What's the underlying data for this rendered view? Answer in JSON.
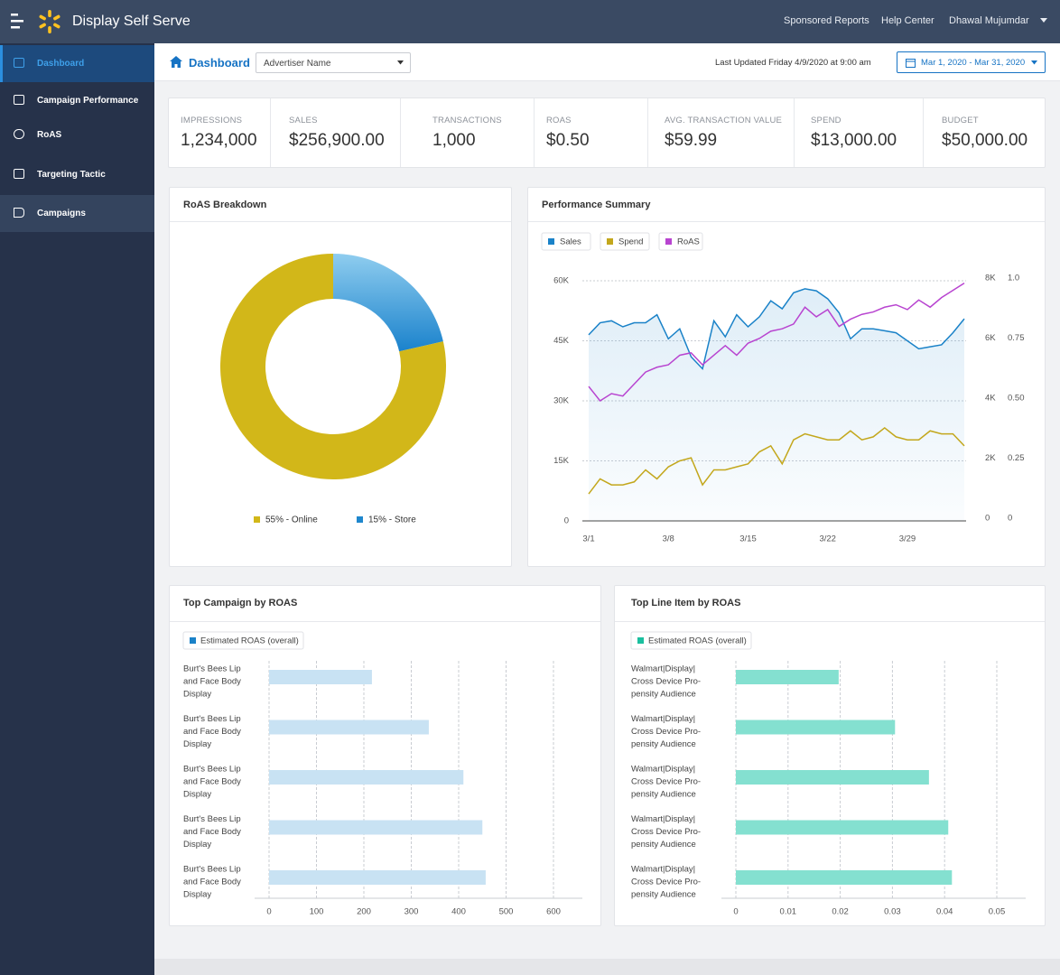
{
  "header": {
    "app_name": "Display Self Serve",
    "links": [
      "Sponsored Reports",
      "Help Center",
      "Dhawal Mujumdar"
    ]
  },
  "sidebar": {
    "items": [
      "Dashboard",
      "Campaign Performance",
      "RoAS",
      "Targeting Tactic",
      "Campaigns"
    ],
    "active": 0
  },
  "toolbar": {
    "title": "Dashboard",
    "advertiser_placeholder": "Advertiser Name",
    "last_updated": "Last Updated Friday 4/9/2020 at 9:00 am",
    "date_range": "Mar 1, 2020 - Mar 31, 2020"
  },
  "kpis": [
    {
      "label": "IMPRESSIONS",
      "value": "1,234,000"
    },
    {
      "label": "SALES",
      "value": "$256,900.00"
    },
    {
      "label": "TRANSACTIONS",
      "value": "1,000"
    },
    {
      "label": "ROAS",
      "value": "$0.50"
    },
    {
      "label": "AVG. TRANSACTION VALUE",
      "value": "$59.99"
    },
    {
      "label": "SPEND",
      "value": "$13,000.00"
    },
    {
      "label": "BUDGET",
      "value": "$50,000.00"
    }
  ],
  "roas_breakdown": {
    "type": "pie",
    "donut": true,
    "title": "RoAS Breakdown",
    "labels": [
      "55% - Online",
      "15% - Store"
    ],
    "values": [
      55,
      15
    ],
    "colors": [
      "#d2b719",
      "#1f87cd"
    ]
  },
  "performance_summary": {
    "type": "line",
    "title": "Performance Summary",
    "categories": [
      "3/1",
      null,
      null,
      null,
      null,
      null,
      null,
      "3/8",
      null,
      null,
      null,
      null,
      null,
      null,
      "3/15",
      null,
      null,
      null,
      null,
      null,
      null,
      "3/22",
      null,
      null,
      null,
      null,
      null,
      null,
      "3/29",
      null,
      null,
      null,
      null,
      null
    ],
    "series": [
      {
        "name": "Sales",
        "color": "#1a82c8",
        "area": true,
        "values": [
          46500,
          49500,
          50000,
          48500,
          49500,
          49500,
          51500,
          45500,
          48000,
          41000,
          38000,
          50000,
          46000,
          51500,
          48500,
          51000,
          55000,
          53000,
          57000,
          58000,
          57500,
          55500,
          52000,
          45500,
          48000,
          48000,
          47500,
          47000,
          45000,
          43000,
          43500,
          44000,
          47000,
          50500
        ]
      },
      {
        "name": "Spend",
        "color": "#c3a71c",
        "axis": "y2",
        "values": [
          900,
          1400,
          1200,
          1200,
          1300,
          1700,
          1400,
          1800,
          2000,
          2100,
          1200,
          1700,
          1700,
          1800,
          1900,
          2300,
          2500,
          1900,
          2700,
          2900,
          2800,
          2700,
          2700,
          3000,
          2700,
          2800,
          3100,
          2800,
          2700,
          2700,
          3000,
          2900,
          2900,
          2500
        ]
      },
      {
        "name": "RoAS",
        "color": "#b844d0",
        "axis": "y3",
        "values": [
          0.56,
          0.5,
          0.53,
          0.52,
          0.57,
          0.62,
          0.64,
          0.65,
          0.69,
          0.7,
          0.65,
          0.69,
          0.73,
          0.69,
          0.74,
          0.76,
          0.79,
          0.8,
          0.82,
          0.89,
          0.85,
          0.88,
          0.81,
          0.84,
          0.86,
          0.87,
          0.89,
          0.9,
          0.88,
          0.92,
          0.89,
          0.93,
          0.96,
          0.99
        ]
      }
    ],
    "ylim": [
      0,
      60000
    ],
    "yticks": [
      0,
      {
        "value": 15000,
        "label": "15K"
      },
      {
        "value": 30000,
        "label": "30K"
      },
      {
        "value": 45000,
        "label": "45K"
      },
      {
        "value": 60000,
        "label": "60K"
      }
    ],
    "y2lim": [
      0,
      8000
    ],
    "y2ticks": [
      0,
      {
        "value": 2000,
        "label": "2K"
      },
      {
        "value": 4000,
        "label": "4K"
      },
      {
        "value": 6000,
        "label": "6K"
      },
      {
        "value": 8000,
        "label": "8K"
      }
    ],
    "y3lim": [
      0,
      1
    ],
    "y3ticks": [
      0,
      0.25,
      {
        "value": 0.5,
        "label": "0.50"
      },
      0.75,
      {
        "value": 1,
        "label": "1.0"
      }
    ],
    "grid": true
  },
  "top_campaign": {
    "type": "bar",
    "orientation": "horizontal",
    "title": "Top Campaign by ROAS",
    "categories": [
      [
        "Burt's Bees Lip",
        "and Face Body",
        "Display"
      ],
      [
        "Burt's Bees Lip",
        "and Face Body",
        "Display"
      ],
      [
        "Burt's Bees Lip",
        "and Face Body",
        "Display"
      ],
      [
        "Burt's Bees Lip",
        "and Face Body",
        "Display"
      ],
      [
        "Burt's Bees Lip",
        "and Face Body",
        "Display"
      ]
    ],
    "series": [
      {
        "name": "Estimated ROAS (overall)",
        "color": "#c8e2f3",
        "legend_color": "#1a82c8",
        "values": [
          217,
          337,
          410,
          450,
          457
        ]
      }
    ],
    "xlim": [
      0,
      600
    ],
    "xticks": [
      0,
      100,
      200,
      300,
      400,
      500,
      600
    ],
    "grid": true
  },
  "top_line_item": {
    "type": "bar",
    "orientation": "horizontal",
    "title": "Top Line Item by ROAS",
    "categories": [
      [
        "Walmart|Display|",
        "Cross Device Pro-",
        "pensity Audience"
      ],
      [
        "Walmart|Display|",
        "Cross Device Pro-",
        "pensity Audience"
      ],
      [
        "Walmart|Display|",
        "Cross Device Pro-",
        "pensity Audience"
      ],
      [
        "Walmart|Display|",
        "Cross Device Pro-",
        "pensity Audience"
      ],
      [
        "Walmart|Display|",
        "Cross Device Pro-",
        "pensity Audience"
      ]
    ],
    "series": [
      {
        "name": "Estimated ROAS (overall)",
        "color": "#84e0d0",
        "legend_color": "#1bbf9f",
        "values": [
          0.0197,
          0.0305,
          0.037,
          0.0407,
          0.0414
        ]
      }
    ],
    "xlim": [
      0,
      0.05
    ],
    "xticks": [
      0,
      0.01,
      0.02,
      0.03,
      0.04,
      0.05
    ],
    "grid": true
  }
}
